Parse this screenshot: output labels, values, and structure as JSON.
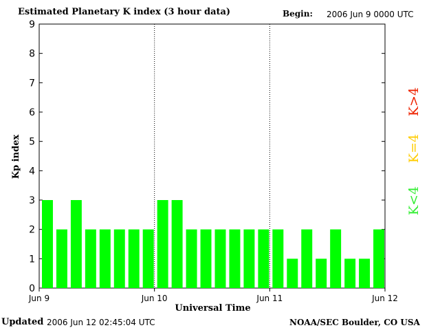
{
  "header": {
    "title": "Estimated Planetary K index (3 hour data)",
    "begin_label": "Begin:",
    "begin_value": "2006 Jun 9 0000 UTC"
  },
  "footer": {
    "updated_label": "Updated",
    "updated_value": "2006 Jun 12 02:45:04 UTC",
    "credit": "NOAA/SEC Boulder, CO USA"
  },
  "chart_data": {
    "type": "bar",
    "title": "Estimated Planetary K index (3 hour data)",
    "xlabel": "Universal Time",
    "ylabel": "Kp index",
    "ylim": [
      0,
      9
    ],
    "yticks": [
      0,
      1,
      2,
      3,
      4,
      5,
      6,
      7,
      8,
      9
    ],
    "x_day_labels": [
      "Jun 9",
      "Jun 10",
      "Jun 11",
      "Jun 12"
    ],
    "values": [
      3,
      2,
      3,
      2,
      2,
      2,
      2,
      2,
      3,
      3,
      2,
      2,
      2,
      2,
      2,
      2,
      2,
      1,
      2,
      1,
      2,
      1,
      1,
      2
    ],
    "bar_color": "#00ff00",
    "legend": [
      {
        "label": "K<4",
        "color": "#33ee33"
      },
      {
        "label": "K=4",
        "color": "#ffcc00"
      },
      {
        "label": "K>4",
        "color": "#ee2200"
      }
    ],
    "grid": false,
    "day_separators": true
  }
}
